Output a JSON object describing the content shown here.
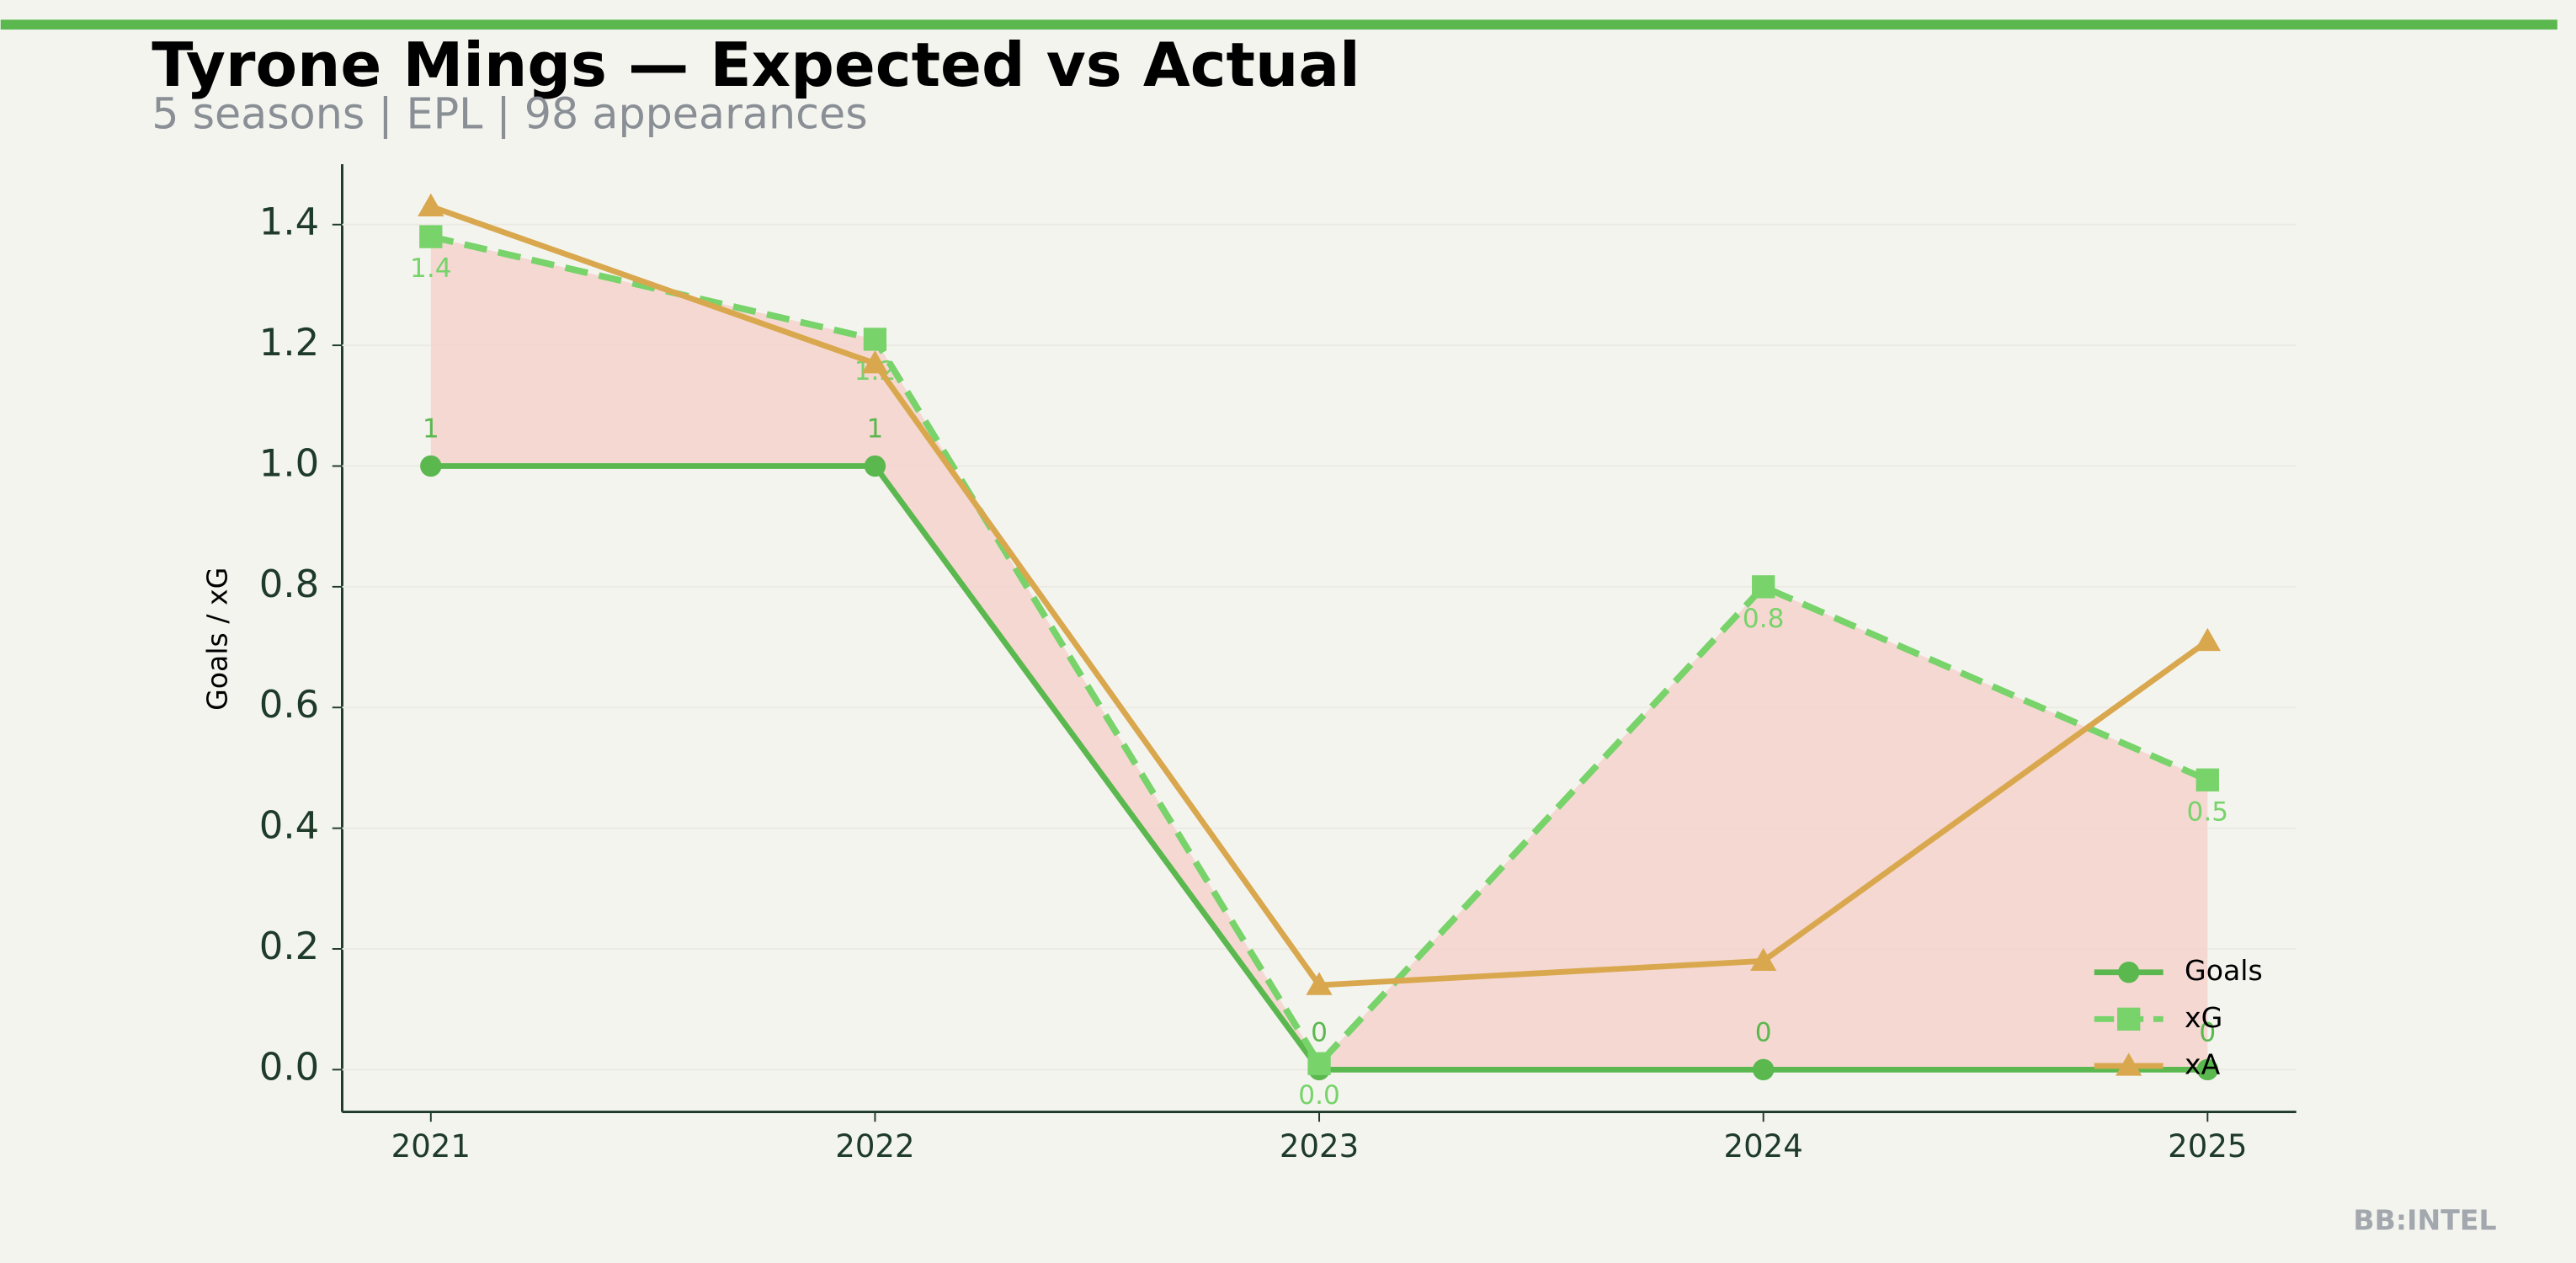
{
  "chart_data": {
    "type": "line",
    "title": "Tyrone Mings — Expected vs Actual",
    "subtitle": "5 seasons | EPL | 98 appearances",
    "ylabel": "Goals / xG",
    "watermark": "BB:INTEL",
    "categories": [
      "2021",
      "2022",
      "2023",
      "2024",
      "2025"
    ],
    "series": [
      {
        "name": "Goals",
        "color": "#5bb84f",
        "marker": "circle",
        "linestyle": "solid",
        "values": [
          1,
          1,
          0,
          0,
          0
        ]
      },
      {
        "name": "xG",
        "color": "#77d36a",
        "marker": "square",
        "linestyle": "dashed",
        "values": [
          1.38,
          1.21,
          0.01,
          0.8,
          0.48
        ],
        "value_labels": [
          "1.4",
          "1.2",
          "0.0",
          "0.8",
          "0.5"
        ]
      },
      {
        "name": "xA",
        "color": "#d9a84e",
        "marker": "triangle",
        "linestyle": "solid",
        "values": [
          1.43,
          1.17,
          0.14,
          0.18,
          0.71
        ]
      }
    ],
    "fill_between": {
      "series": [
        0,
        1
      ],
      "color": "#f5d2cc"
    },
    "ylim": [
      -0.07,
      1.5
    ],
    "yticks": [
      {
        "value": 0,
        "label": "0.0"
      },
      0.2,
      0.4,
      0.6,
      0.8,
      {
        "value": 1,
        "label": "1.0"
      },
      1.2,
      1.4
    ],
    "grid": true,
    "legend": "lower right"
  }
}
